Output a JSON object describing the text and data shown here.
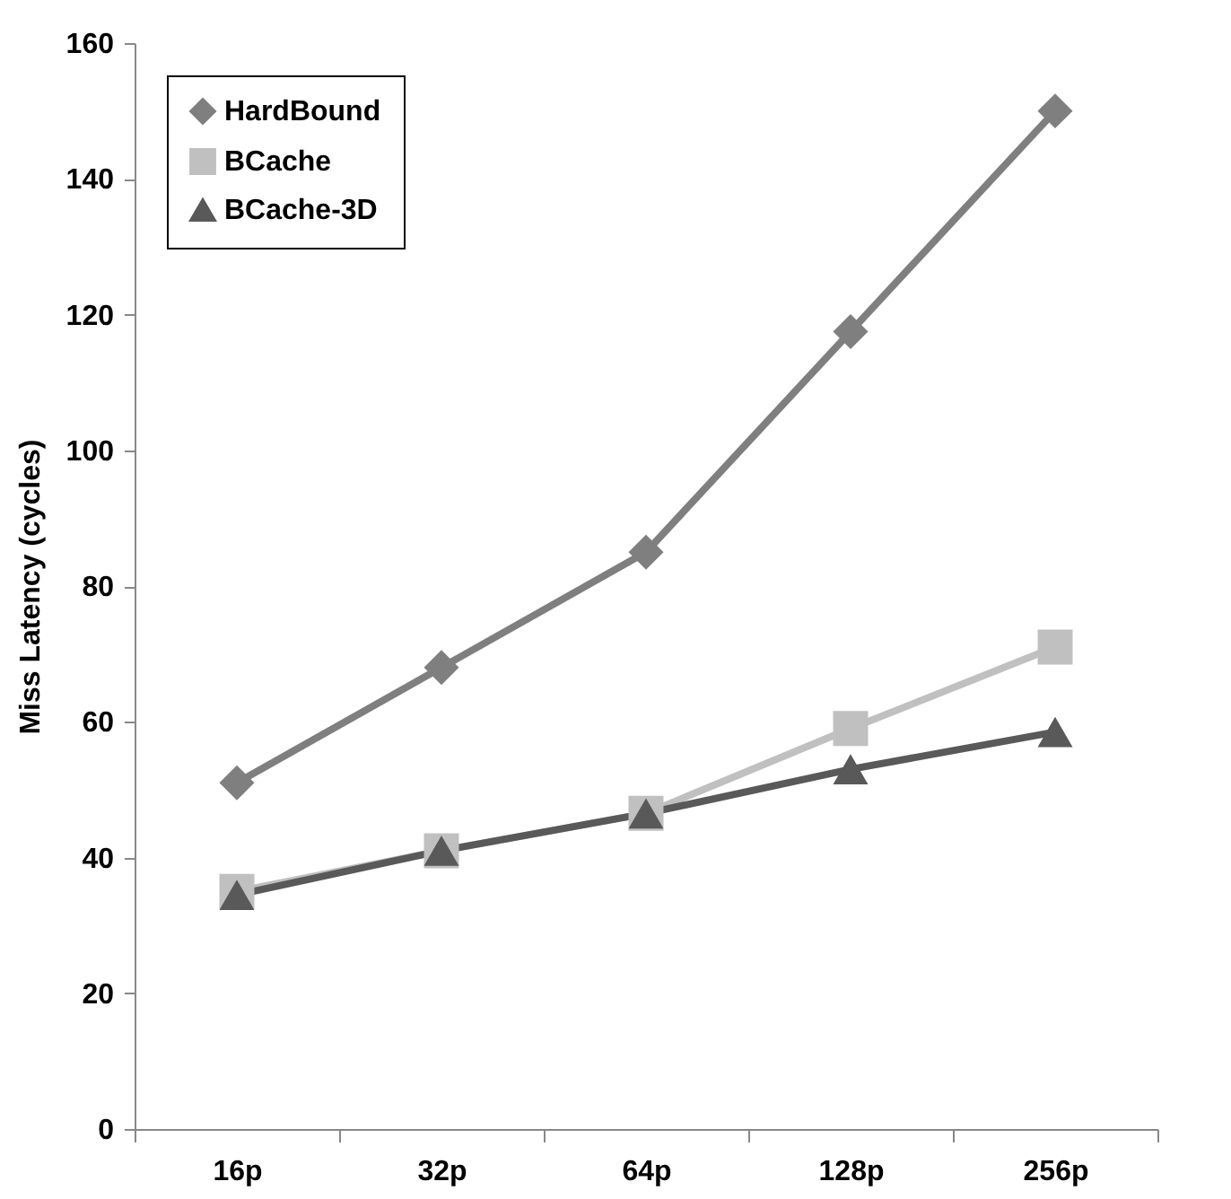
{
  "chart_data": {
    "type": "line",
    "ylabel": "Miss Latency (cycles)",
    "categories": [
      "16p",
      "32p",
      "64p",
      "128p",
      "256p"
    ],
    "series": [
      {
        "name": "HardBound",
        "color": "#7f7f7f",
        "marker": "diamond",
        "values": [
          51,
          68,
          85,
          117.5,
          150
        ]
      },
      {
        "name": "BCache",
        "color": "#c0c0c0",
        "marker": "square",
        "values": [
          35,
          41,
          46.5,
          59,
          71
        ]
      },
      {
        "name": "BCache-3D",
        "color": "#595959",
        "marker": "triangle",
        "values": [
          34.5,
          41,
          46.5,
          53,
          58.5
        ]
      }
    ],
    "ylim": [
      0,
      160
    ],
    "yticks": [
      0,
      20,
      40,
      60,
      80,
      100,
      120,
      140,
      160
    ],
    "grid": false,
    "legend": "top left",
    "line_style": "solid"
  }
}
